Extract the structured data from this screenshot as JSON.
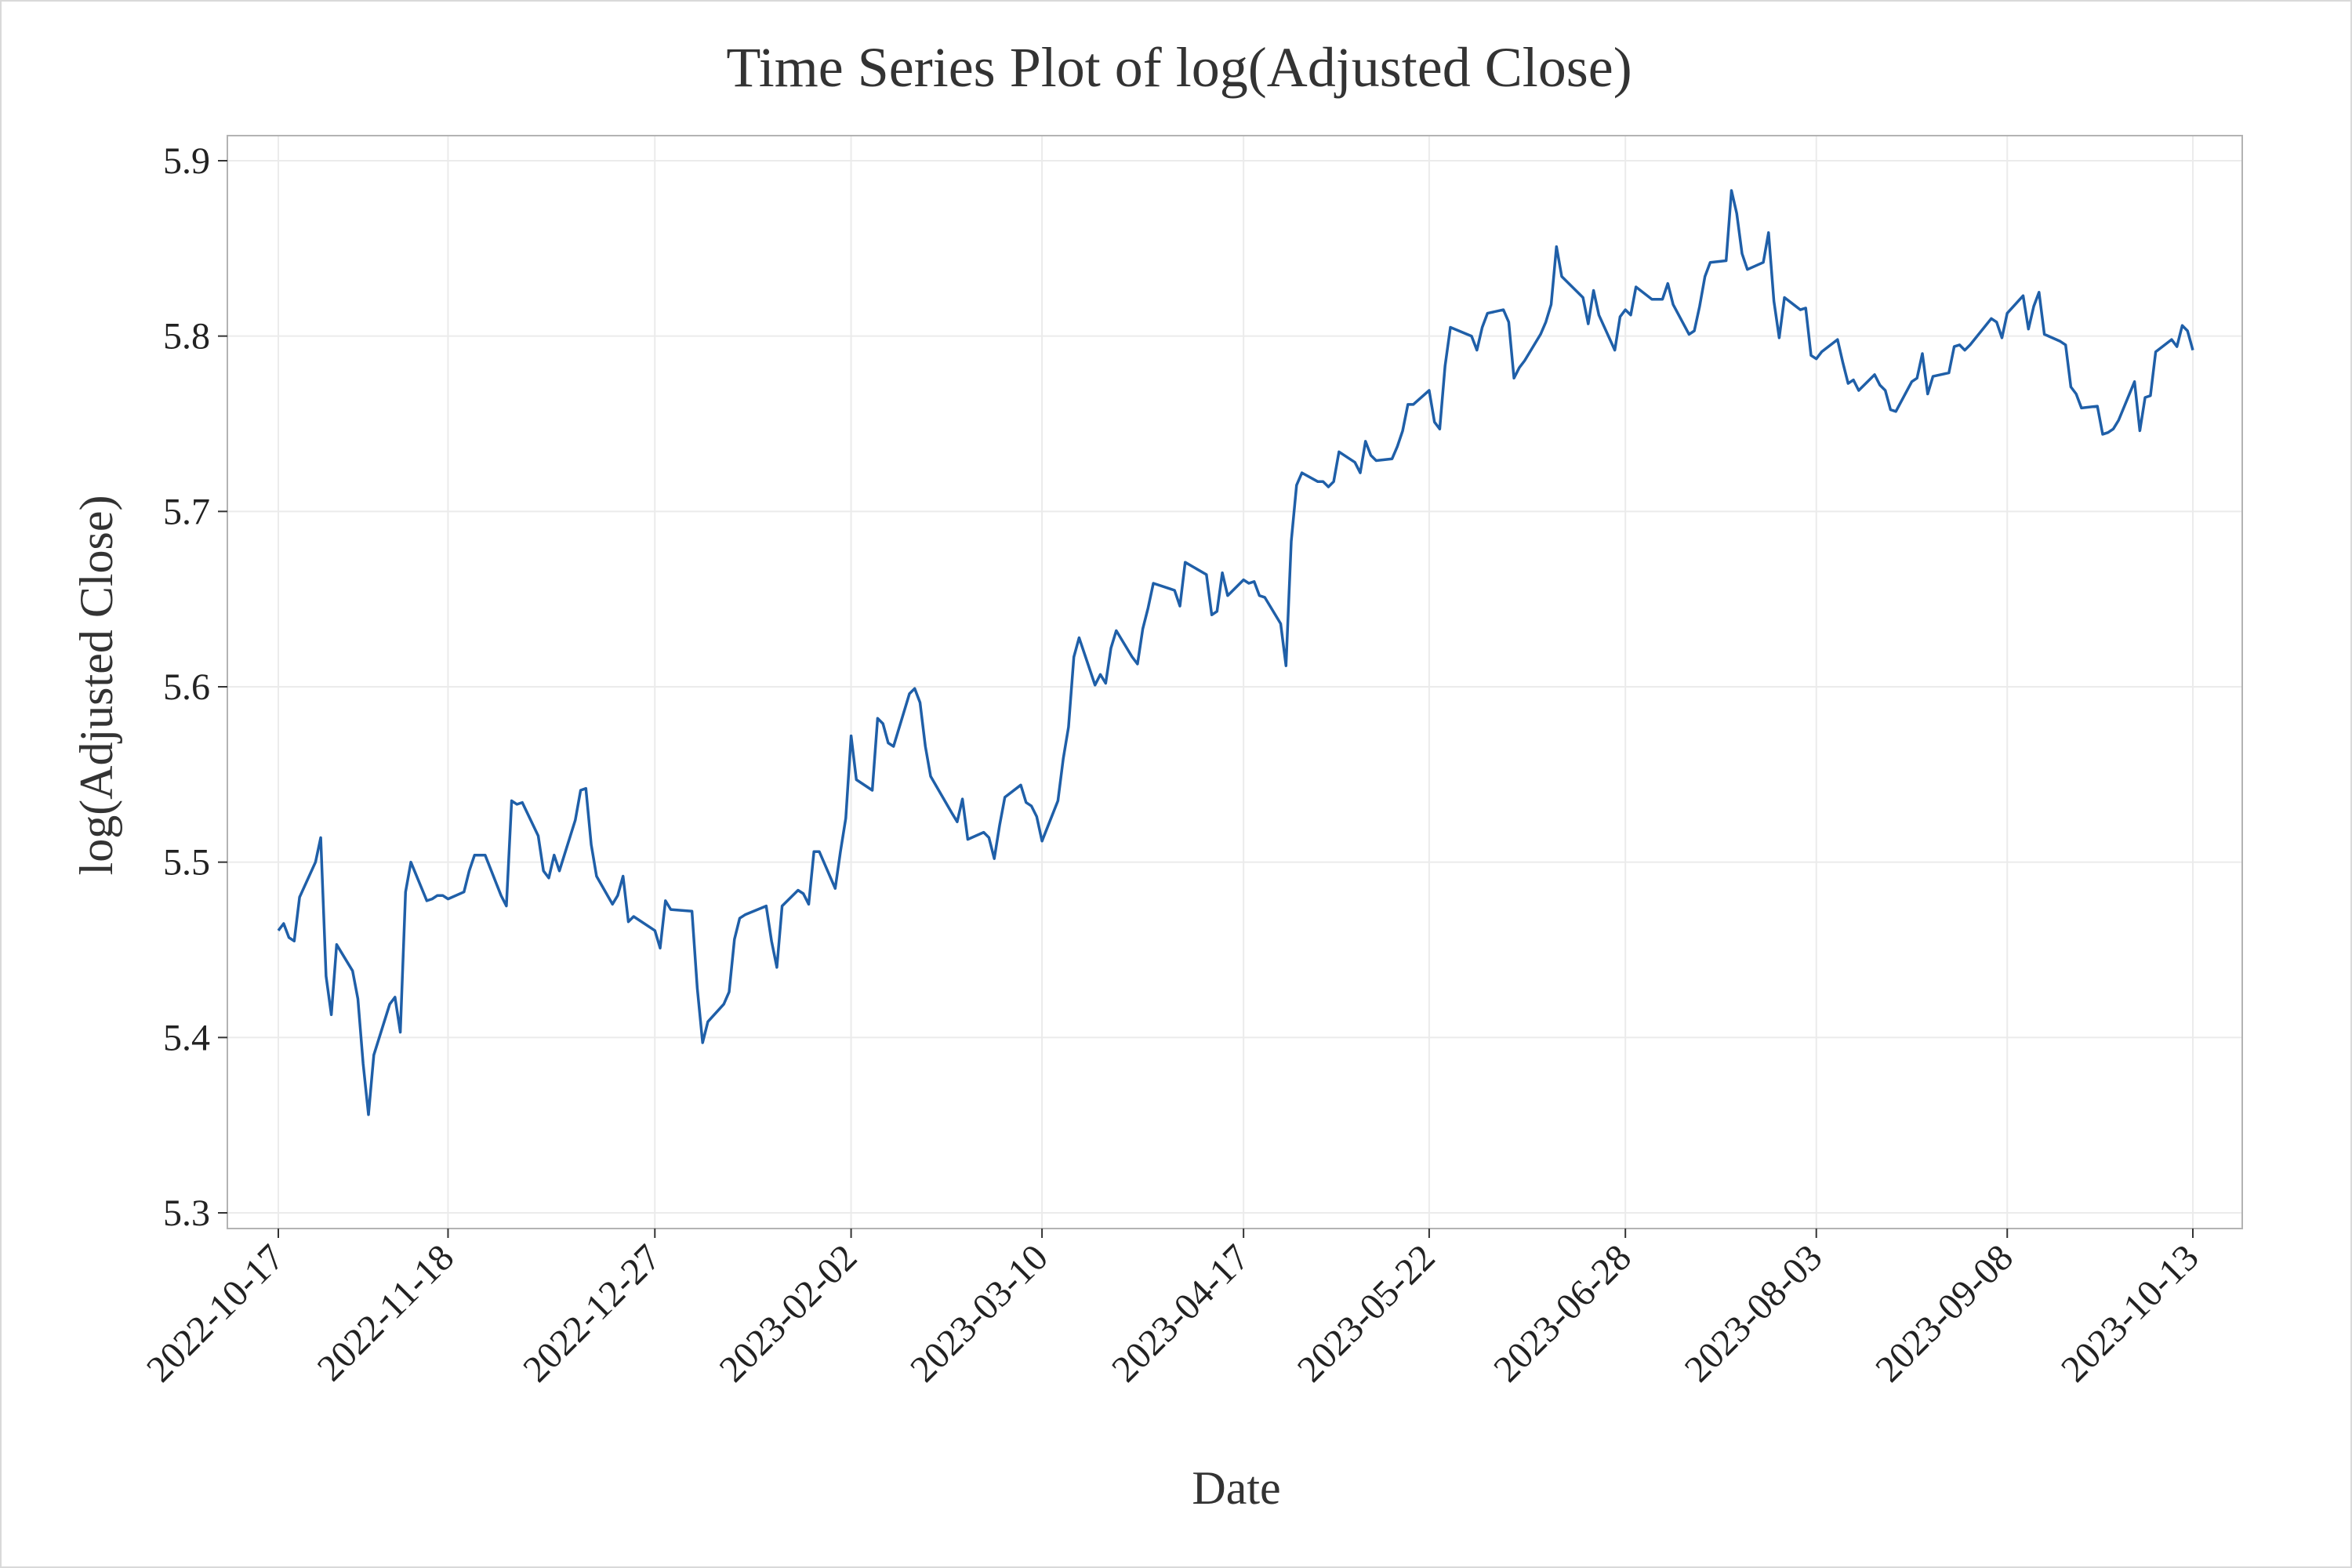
{
  "chart_data": {
    "type": "line",
    "title": "Time Series Plot of log(Adjusted Close)",
    "xlabel": "Date",
    "ylabel": "log(Adjusted Close)",
    "xlim": [
      "2022-10-17",
      "2023-10-13"
    ],
    "ylim": [
      5.3,
      5.9
    ],
    "x_ticks": [
      "2022-10-17",
      "2022-11-18",
      "2022-12-27",
      "2023-02-02",
      "2023-03-10",
      "2023-04-17",
      "2023-05-22",
      "2023-06-28",
      "2023-08-03",
      "2023-09-08",
      "2023-10-13"
    ],
    "y_ticks": [
      "5.3",
      "5.4",
      "5.5",
      "5.6",
      "5.7",
      "5.8",
      "5.9"
    ],
    "grid": true,
    "line_color": "#1f5fa8",
    "series": [
      {
        "x": [
          "2022-10-17",
          "2022-10-18",
          "2022-10-19",
          "2022-10-20",
          "2022-10-21",
          "2022-10-24",
          "2022-10-25",
          "2022-10-26",
          "2022-10-27",
          "2022-10-28",
          "2022-10-31",
          "2022-11-01",
          "2022-11-02",
          "2022-11-03",
          "2022-11-04",
          "2022-11-07",
          "2022-11-08",
          "2022-11-09",
          "2022-11-10",
          "2022-11-11",
          "2022-11-14",
          "2022-11-15",
          "2022-11-16",
          "2022-11-17",
          "2022-11-18",
          "2022-11-21",
          "2022-11-22",
          "2022-11-23",
          "2022-11-25",
          "2022-11-28",
          "2022-11-29",
          "2022-11-30",
          "2022-12-01",
          "2022-12-02",
          "2022-12-05",
          "2022-12-06",
          "2022-12-07",
          "2022-12-08",
          "2022-12-09",
          "2022-12-12",
          "2022-12-13",
          "2022-12-14",
          "2022-12-15",
          "2022-12-16",
          "2022-12-19",
          "2022-12-20",
          "2022-12-21",
          "2022-12-22",
          "2022-12-23",
          "2022-12-27",
          "2022-12-28",
          "2022-12-29",
          "2022-12-30",
          "2023-01-03",
          "2023-01-04",
          "2023-01-05",
          "2023-01-06",
          "2023-01-09",
          "2023-01-10",
          "2023-01-11",
          "2023-01-12",
          "2023-01-13",
          "2023-01-17",
          "2023-01-18",
          "2023-01-19",
          "2023-01-20",
          "2023-01-23",
          "2023-01-24",
          "2023-01-25",
          "2023-01-26",
          "2023-01-27",
          "2023-01-30",
          "2023-01-31",
          "2023-02-01",
          "2023-02-02",
          "2023-02-03",
          "2023-02-06",
          "2023-02-07",
          "2023-02-08",
          "2023-02-09",
          "2023-02-10",
          "2023-02-13",
          "2023-02-14",
          "2023-02-15",
          "2023-02-16",
          "2023-02-17",
          "2023-02-21",
          "2023-02-22",
          "2023-02-23",
          "2023-02-24",
          "2023-02-27",
          "2023-02-28",
          "2023-03-01",
          "2023-03-02",
          "2023-03-03",
          "2023-03-06",
          "2023-03-07",
          "2023-03-08",
          "2023-03-09",
          "2023-03-10",
          "2023-03-13",
          "2023-03-14",
          "2023-03-15",
          "2023-03-16",
          "2023-03-17",
          "2023-03-20",
          "2023-03-21",
          "2023-03-22",
          "2023-03-23",
          "2023-03-24",
          "2023-03-27",
          "2023-03-28",
          "2023-03-29",
          "2023-03-30",
          "2023-03-31",
          "2023-04-03",
          "2023-04-04",
          "2023-04-05",
          "2023-04-06",
          "2023-04-10",
          "2023-04-11",
          "2023-04-12",
          "2023-04-13",
          "2023-04-14",
          "2023-04-17",
          "2023-04-18",
          "2023-04-19",
          "2023-04-20",
          "2023-04-21",
          "2023-04-24",
          "2023-04-25",
          "2023-04-26",
          "2023-04-27",
          "2023-04-28",
          "2023-05-01",
          "2023-05-02",
          "2023-05-03",
          "2023-05-04",
          "2023-05-05",
          "2023-05-08",
          "2023-05-09",
          "2023-05-10",
          "2023-05-11",
          "2023-05-12",
          "2023-05-15",
          "2023-05-16",
          "2023-05-17",
          "2023-05-18",
          "2023-05-19",
          "2023-05-22",
          "2023-05-23",
          "2023-05-24",
          "2023-05-25",
          "2023-05-26",
          "2023-05-30",
          "2023-05-31",
          "2023-06-01",
          "2023-06-02",
          "2023-06-05",
          "2023-06-06",
          "2023-06-07",
          "2023-06-08",
          "2023-06-09",
          "2023-06-12",
          "2023-06-13",
          "2023-06-14",
          "2023-06-15",
          "2023-06-16",
          "2023-06-20",
          "2023-06-21",
          "2023-06-22",
          "2023-06-23",
          "2023-06-26",
          "2023-06-27",
          "2023-06-28",
          "2023-06-29",
          "2023-06-30",
          "2023-07-03",
          "2023-07-05",
          "2023-07-06",
          "2023-07-07",
          "2023-07-10",
          "2023-07-11",
          "2023-07-12",
          "2023-07-13",
          "2023-07-14",
          "2023-07-17",
          "2023-07-18",
          "2023-07-19",
          "2023-07-20",
          "2023-07-21",
          "2023-07-24",
          "2023-07-25",
          "2023-07-26",
          "2023-07-27",
          "2023-07-28",
          "2023-07-31",
          "2023-08-01",
          "2023-08-02",
          "2023-08-03",
          "2023-08-04",
          "2023-08-07",
          "2023-08-08",
          "2023-08-09",
          "2023-08-10",
          "2023-08-11",
          "2023-08-14",
          "2023-08-15",
          "2023-08-16",
          "2023-08-17",
          "2023-08-18",
          "2023-08-21",
          "2023-08-22",
          "2023-08-23",
          "2023-08-24",
          "2023-08-25",
          "2023-08-28",
          "2023-08-29",
          "2023-08-30",
          "2023-08-31",
          "2023-09-01",
          "2023-09-05",
          "2023-09-06",
          "2023-09-07",
          "2023-09-08",
          "2023-09-11",
          "2023-09-12",
          "2023-09-13",
          "2023-09-14",
          "2023-09-15",
          "2023-09-18",
          "2023-09-19",
          "2023-09-20",
          "2023-09-21",
          "2023-09-22",
          "2023-09-25",
          "2023-09-26",
          "2023-09-27",
          "2023-09-28",
          "2023-09-29",
          "2023-10-02",
          "2023-10-03",
          "2023-10-04",
          "2023-10-05",
          "2023-10-06",
          "2023-10-09",
          "2023-10-10",
          "2023-10-11",
          "2023-10-12",
          "2023-10-13"
        ],
        "y": [
          5.461,
          5.465,
          5.457,
          5.455,
          5.48,
          5.5,
          5.514,
          5.435,
          5.413,
          5.453,
          5.438,
          5.422,
          5.385,
          5.356,
          5.39,
          5.419,
          5.423,
          5.403,
          5.483,
          5.5,
          5.478,
          5.479,
          5.481,
          5.481,
          5.479,
          5.483,
          5.495,
          5.504,
          5.504,
          5.481,
          5.475,
          5.535,
          5.533,
          5.534,
          5.515,
          5.495,
          5.491,
          5.504,
          5.495,
          5.524,
          5.541,
          5.542,
          5.51,
          5.492,
          5.476,
          5.481,
          5.492,
          5.466,
          5.469,
          5.461,
          5.451,
          5.478,
          5.473,
          5.472,
          5.428,
          5.397,
          5.409,
          5.419,
          5.426,
          5.456,
          5.468,
          5.47,
          5.475,
          5.455,
          5.44,
          5.475,
          5.484,
          5.482,
          5.476,
          5.506,
          5.506,
          5.485,
          5.506,
          5.525,
          5.572,
          5.547,
          5.541,
          5.582,
          5.579,
          5.568,
          5.566,
          5.596,
          5.599,
          5.591,
          5.566,
          5.549,
          5.528,
          5.523,
          5.536,
          5.513,
          5.517,
          5.514,
          5.502,
          5.521,
          5.537,
          5.544,
          5.534,
          5.532,
          5.526,
          5.512,
          5.535,
          5.559,
          5.577,
          5.617,
          5.628,
          5.601,
          5.607,
          5.602,
          5.622,
          5.632,
          5.617,
          5.613,
          5.633,
          5.645,
          5.659,
          5.656,
          5.655,
          5.646,
          5.671,
          5.664,
          5.641,
          5.643,
          5.665,
          5.652,
          5.661,
          5.659,
          5.66,
          5.652,
          5.651,
          5.636,
          5.612,
          5.683,
          5.715,
          5.722,
          5.717,
          5.717,
          5.714,
          5.717,
          5.734,
          5.728,
          5.722,
          5.74,
          5.732,
          5.729,
          5.73,
          5.737,
          5.746,
          5.761,
          5.761,
          5.769,
          5.751,
          5.747,
          5.783,
          5.805,
          5.8,
          5.792,
          5.805,
          5.813,
          5.815,
          5.808,
          5.776,
          5.782,
          5.786,
          5.801,
          5.808,
          5.818,
          5.851,
          5.834,
          5.822,
          5.807,
          5.826,
          5.812,
          5.792,
          5.811,
          5.815,
          5.812,
          5.828,
          5.821,
          5.821,
          5.83,
          5.818,
          5.801,
          5.803,
          5.817,
          5.834,
          5.842,
          5.843,
          5.883,
          5.87,
          5.847,
          5.838,
          5.842,
          5.859,
          5.82,
          5.799,
          5.822,
          5.815,
          5.816,
          5.789,
          5.787,
          5.791,
          5.798,
          5.785,
          5.773,
          5.775,
          5.769,
          5.778,
          5.772,
          5.769,
          5.758,
          5.757,
          5.774,
          5.776,
          5.79,
          5.767,
          5.777,
          5.779,
          5.794,
          5.795,
          5.792,
          5.795,
          5.81,
          5.808,
          5.799,
          5.813,
          5.823,
          5.804,
          5.817,
          5.825,
          5.801,
          5.797,
          5.795,
          5.771,
          5.767,
          5.759,
          5.76,
          5.744,
          5.745,
          5.747,
          5.752,
          5.774,
          5.746,
          5.765,
          5.766,
          5.791,
          5.798,
          5.794,
          5.806,
          5.803,
          5.792
        ]
      }
    ]
  }
}
